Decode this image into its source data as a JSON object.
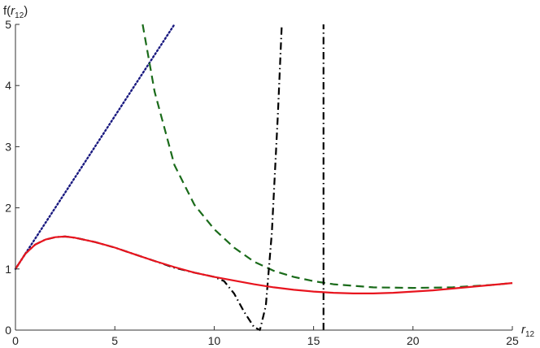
{
  "chart_data": {
    "type": "line",
    "xlabel": {
      "base": "r",
      "sub": "12"
    },
    "ylabel": {
      "prefix": "f(",
      "base": "r",
      "sub": "12",
      "suffix": ")"
    },
    "xlim": [
      0,
      25
    ],
    "ylim": [
      0,
      5
    ],
    "x_ticks": [
      0,
      5,
      10,
      15,
      20,
      25
    ],
    "y_ticks": [
      0,
      1,
      2,
      3,
      4,
      5
    ],
    "grid": false,
    "series": [
      {
        "style": "dotted",
        "color": "#1a1a80",
        "x": [
          0,
          2,
          4,
          6,
          8
        ],
        "y": [
          1.0,
          2.0,
          3.0,
          4.0,
          5.0
        ]
      },
      {
        "style": "dashed",
        "color": "#1a6b1a",
        "x": [
          6.4,
          7,
          8,
          9,
          10,
          11,
          12,
          13,
          14,
          15,
          16,
          18,
          20,
          22,
          24,
          25
        ],
        "y": [
          5.0,
          3.9,
          2.7,
          2.05,
          1.65,
          1.35,
          1.12,
          0.97,
          0.87,
          0.8,
          0.75,
          0.7,
          0.69,
          0.7,
          0.74,
          0.77
        ]
      },
      {
        "style": "dash-dot",
        "color": "#000000",
        "x": [
          0,
          0.5,
          1,
          1.5,
          2,
          2.5,
          3,
          4,
          5,
          6,
          7,
          8,
          9,
          10,
          10.5,
          11,
          11.5,
          12,
          12.3,
          12.6,
          12.9,
          13.2,
          13.4
        ],
        "y": [
          1.0,
          1.25,
          1.4,
          1.48,
          1.52,
          1.53,
          1.51,
          1.44,
          1.35,
          1.24,
          1.13,
          1.02,
          0.94,
          0.87,
          0.8,
          0.6,
          0.3,
          0.05,
          0.0,
          0.4,
          1.6,
          3.5,
          5.0
        ]
      },
      {
        "style": "dash-dot",
        "color": "#000000",
        "x": [
          15.5,
          15.5
        ],
        "y": [
          0.0,
          5.0
        ]
      },
      {
        "style": "solid",
        "color": "#e8141e",
        "x": [
          0,
          0.5,
          1,
          1.5,
          2,
          2.5,
          3,
          4,
          5,
          6,
          7,
          8,
          9,
          10,
          11,
          12,
          13,
          14,
          15,
          16,
          17,
          18,
          19,
          20,
          21,
          22,
          23,
          24,
          25
        ],
        "y": [
          1.0,
          1.25,
          1.4,
          1.48,
          1.52,
          1.53,
          1.51,
          1.44,
          1.35,
          1.24,
          1.13,
          1.03,
          0.94,
          0.87,
          0.81,
          0.75,
          0.7,
          0.66,
          0.63,
          0.61,
          0.6,
          0.6,
          0.61,
          0.63,
          0.65,
          0.68,
          0.71,
          0.74,
          0.77
        ]
      }
    ]
  }
}
